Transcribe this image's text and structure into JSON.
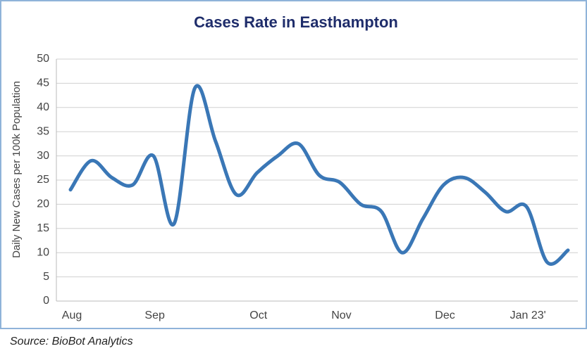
{
  "chart_data": {
    "type": "line",
    "title": "Cases Rate in Easthampton",
    "y_label": "Daily New Cases per 100k Population",
    "source": "Source: BioBot Analytics",
    "categories": [
      "Aug",
      null,
      null,
      null,
      "Sep",
      null,
      null,
      null,
      null,
      "Oct",
      null,
      null,
      null,
      "Nov",
      null,
      null,
      null,
      null,
      "Dec",
      null,
      null,
      null,
      "Jan 23'",
      null,
      null
    ],
    "series": [
      {
        "color": "#3a77b6",
        "values": [
          23,
          29,
          25.5,
          24,
          30,
          16,
          44,
          33,
          22,
          26.5,
          30,
          32.5,
          26,
          24.5,
          20,
          18.5,
          10,
          17,
          24,
          25.5,
          22.5,
          18.5,
          19.5,
          8,
          10.5
        ]
      }
    ],
    "ylim": [
      0,
      50
    ],
    "yticks": [
      0,
      5,
      10,
      15,
      20,
      25,
      30,
      35,
      40,
      45,
      50
    ],
    "grid": true
  }
}
